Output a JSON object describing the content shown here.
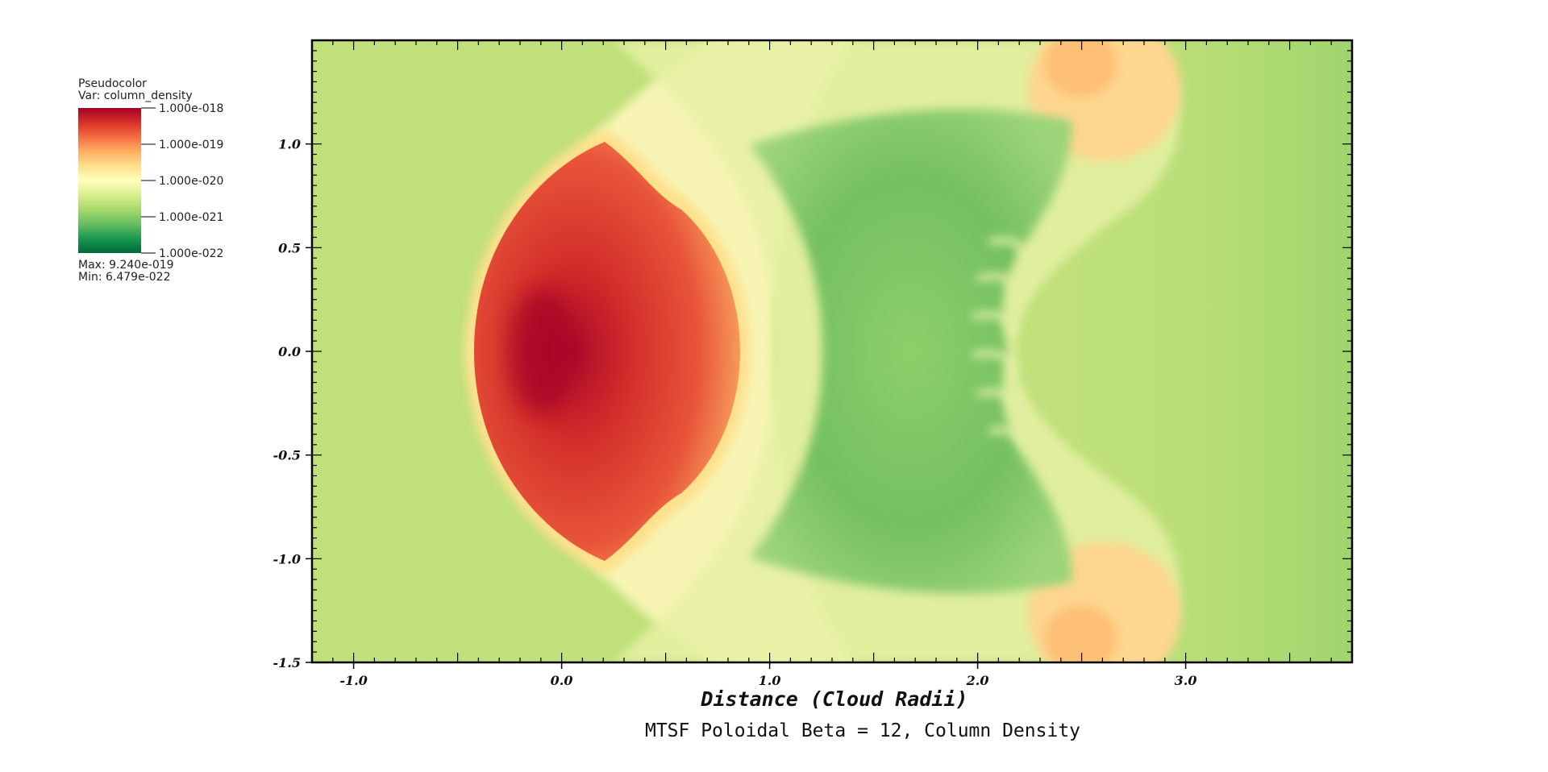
{
  "chart_data": {
    "type": "heatmap",
    "legend": {
      "plot_type": "Pseudocolor",
      "variable": "Var: column_density",
      "tick_labels": [
        "1.000e-018",
        "1.000e-019",
        "1.000e-020",
        "1.000e-021",
        "1.000e-022"
      ],
      "max_label": "Max:  9.240e-019",
      "min_label": "Min:  6.479e-022",
      "colormap": [
        "#a50026",
        "#d73027",
        "#f46d43",
        "#fdae61",
        "#fee08b",
        "#ffffbf",
        "#d9ef8b",
        "#a6d96a",
        "#66bd63",
        "#1a9850",
        "#006837"
      ],
      "scale": "log"
    },
    "xlabel": "Distance (Cloud Radii)",
    "title": "MTSF Poloidal Beta = 12, Column Density",
    "xlim": [
      -1.2,
      3.8
    ],
    "ylim": [
      -1.5,
      1.5
    ],
    "x_ticks": [
      {
        "value": -1.0,
        "label": "-1.0"
      },
      {
        "value": 0.0,
        "label": "0.0"
      },
      {
        "value": 1.0,
        "label": "1.0"
      },
      {
        "value": 2.0,
        "label": "2.0"
      },
      {
        "value": 3.0,
        "label": "3.0"
      }
    ],
    "y_ticks": [
      {
        "value": 1.0,
        "label": "1.0"
      },
      {
        "value": 0.5,
        "label": "0.5"
      },
      {
        "value": 0.0,
        "label": "0.0"
      },
      {
        "value": -0.5,
        "label": "-0.5"
      },
      {
        "value": -1.0,
        "label": "-1.0"
      },
      {
        "value": -1.5,
        "label": "-1.5"
      }
    ],
    "background_color": "#bfe07a",
    "regions": [
      {
        "name": "cloud-core",
        "color": "#b40d2c",
        "x": -0.1,
        "y": 0.0
      },
      {
        "name": "cloud-body",
        "color": "#e0452f",
        "x": 0.2,
        "y": 0.0
      },
      {
        "name": "bow-shock",
        "color": "#fee08b",
        "x": -0.45,
        "y": 0.0
      },
      {
        "name": "tail-cavity",
        "color": "#79c364",
        "x": 1.8,
        "y": 0.0
      },
      {
        "name": "upper-vortex",
        "color": "#fdbf75",
        "x": 2.5,
        "y": 1.35
      },
      {
        "name": "lower-vortex",
        "color": "#fdbf75",
        "x": 2.5,
        "y": -1.35
      }
    ]
  }
}
